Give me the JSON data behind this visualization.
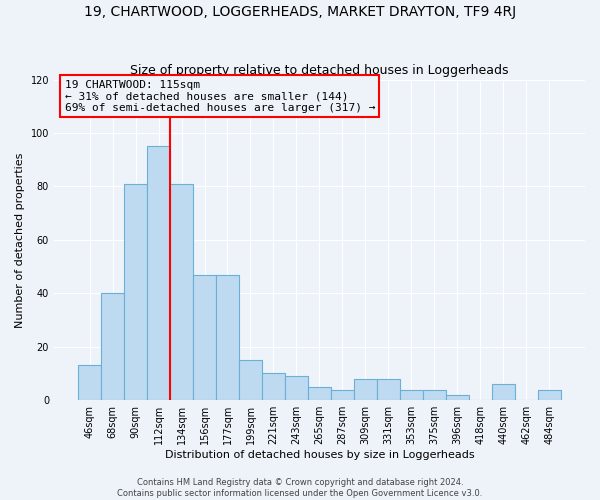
{
  "title": "19, CHARTWOOD, LOGGERHEADS, MARKET DRAYTON, TF9 4RJ",
  "subtitle": "Size of property relative to detached houses in Loggerheads",
  "xlabel": "Distribution of detached houses by size in Loggerheads",
  "ylabel": "Number of detached properties",
  "bin_labels": [
    "46sqm",
    "68sqm",
    "90sqm",
    "112sqm",
    "134sqm",
    "156sqm",
    "177sqm",
    "199sqm",
    "221sqm",
    "243sqm",
    "265sqm",
    "287sqm",
    "309sqm",
    "331sqm",
    "353sqm",
    "375sqm",
    "396sqm",
    "418sqm",
    "440sqm",
    "462sqm",
    "484sqm"
  ],
  "bar_heights": [
    13,
    40,
    81,
    95,
    81,
    47,
    47,
    15,
    10,
    9,
    5,
    4,
    8,
    8,
    4,
    4,
    2,
    0,
    6,
    0,
    4
  ],
  "bar_color": "#BEDAF0",
  "bar_edge_color": "#6AAFD6",
  "annotation_line1": "19 CHARTWOOD: 115sqm",
  "annotation_line2": "← 31% of detached houses are smaller (144)",
  "annotation_line3": "69% of semi-detached houses are larger (317) →",
  "ylim": [
    0,
    120
  ],
  "yticks": [
    0,
    20,
    40,
    60,
    80,
    100,
    120
  ],
  "footer1": "Contains HM Land Registry data © Crown copyright and database right 2024.",
  "footer2": "Contains public sector information licensed under the Open Government Licence v3.0.",
  "background_color": "#eef2f9",
  "grid_color": "#ffffff",
  "title_fontsize": 10,
  "subtitle_fontsize": 9,
  "axis_label_fontsize": 8,
  "tick_fontsize": 7,
  "annotation_fontsize": 8,
  "footer_fontsize": 6
}
